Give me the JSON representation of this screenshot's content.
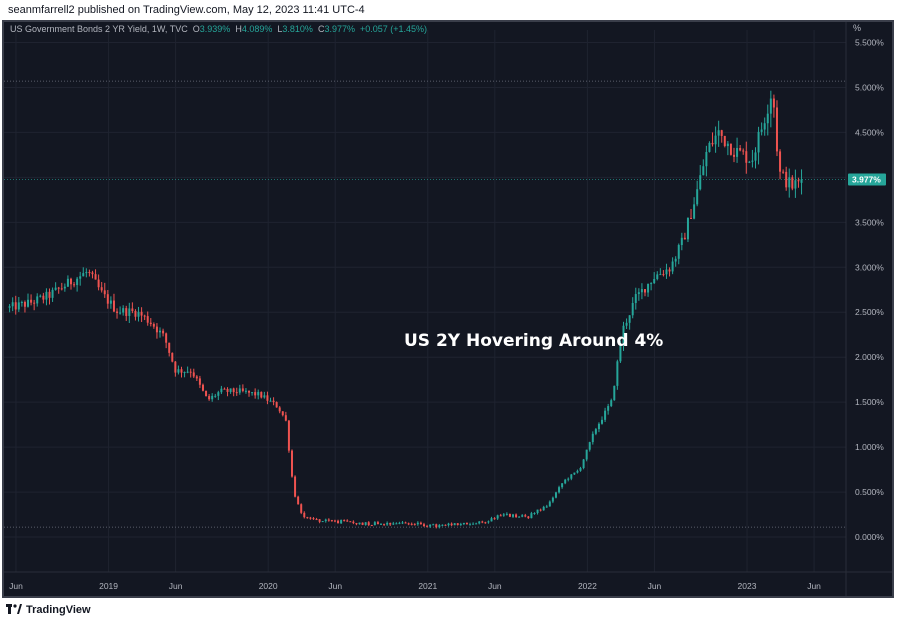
{
  "header": {
    "published_text": "seanmfarrell2 published on TradingView.com, May 12, 2023 11:41 UTC-4"
  },
  "legend": {
    "symbol": "US Government Bonds 2 YR Yield, 1W, TVC",
    "open_label": "O",
    "open_value": "3.939%",
    "high_label": "H",
    "high_value": "4.089%",
    "low_label": "L",
    "low_value": "3.810%",
    "close_label": "C",
    "close_value": "3.977%",
    "change": "+0.057 (+1.45%)"
  },
  "axis": {
    "unit_label": "%",
    "current_price_label": "3.977%"
  },
  "annotation": "US 2Y Hovering Around 4%",
  "footer": {
    "brand": "TradingView"
  },
  "colors": {
    "background": "#131722",
    "up": "#26a69a",
    "down": "#ef5350",
    "grid": "#1f2330",
    "axis_text": "#b2b5be",
    "price_badge": "#26a69a"
  },
  "chart_data": {
    "type": "candlestick",
    "ylim": [
      -0.4,
      5.55
    ],
    "y_ticks": [
      "0.000%",
      "0.500%",
      "1.000%",
      "1.500%",
      "2.000%",
      "2.500%",
      "3.000%",
      "3.500%",
      "4.000%",
      "4.500%",
      "5.000%",
      "5.500%"
    ],
    "y_tick_values": [
      0,
      0.5,
      1.0,
      1.5,
      2.0,
      2.5,
      3.0,
      3.5,
      4.0,
      4.5,
      5.0,
      5.5
    ],
    "x_ticks": [
      {
        "label": "Jun",
        "date": 2018.42
      },
      {
        "label": "2019",
        "date": 2019.0
      },
      {
        "label": "Jun",
        "date": 2019.42
      },
      {
        "label": "2020",
        "date": 2020.0
      },
      {
        "label": "Jun",
        "date": 2020.42
      },
      {
        "label": "2021",
        "date": 2021.0
      },
      {
        "label": "Jun",
        "date": 2021.42
      },
      {
        "label": "2022",
        "date": 2022.0
      },
      {
        "label": "Jun",
        "date": 2022.42
      },
      {
        "label": "2023",
        "date": 2023.0
      },
      {
        "label": "Jun",
        "date": 2023.42
      }
    ],
    "xlim": [
      2018.37,
      2023.57
    ],
    "reference_lines": [
      5.07,
      0.11
    ],
    "current_price": 3.977,
    "anchor_series": [
      {
        "t": 2018.38,
        "v": 2.55
      },
      {
        "t": 2018.5,
        "v": 2.6
      },
      {
        "t": 2018.62,
        "v": 2.68
      },
      {
        "t": 2018.8,
        "v": 2.88
      },
      {
        "t": 2018.87,
        "v": 2.95
      },
      {
        "t": 2018.96,
        "v": 2.7
      },
      {
        "t": 2019.05,
        "v": 2.52
      },
      {
        "t": 2019.18,
        "v": 2.5
      },
      {
        "t": 2019.27,
        "v": 2.38
      },
      {
        "t": 2019.35,
        "v": 2.22
      },
      {
        "t": 2019.42,
        "v": 1.85
      },
      {
        "t": 2019.52,
        "v": 1.85
      },
      {
        "t": 2019.62,
        "v": 1.52
      },
      {
        "t": 2019.7,
        "v": 1.62
      },
      {
        "t": 2019.82,
        "v": 1.62
      },
      {
        "t": 2019.95,
        "v": 1.58
      },
      {
        "t": 2020.06,
        "v": 1.45
      },
      {
        "t": 2020.11,
        "v": 1.3
      },
      {
        "t": 2020.16,
        "v": 0.5
      },
      {
        "t": 2020.21,
        "v": 0.25
      },
      {
        "t": 2020.3,
        "v": 0.19
      },
      {
        "t": 2020.6,
        "v": 0.15
      },
      {
        "t": 2020.85,
        "v": 0.16
      },
      {
        "t": 2021.05,
        "v": 0.12
      },
      {
        "t": 2021.35,
        "v": 0.16
      },
      {
        "t": 2021.45,
        "v": 0.25
      },
      {
        "t": 2021.62,
        "v": 0.22
      },
      {
        "t": 2021.75,
        "v": 0.35
      },
      {
        "t": 2021.85,
        "v": 0.62
      },
      {
        "t": 2021.95,
        "v": 0.75
      },
      {
        "t": 2022.05,
        "v": 1.2
      },
      {
        "t": 2022.15,
        "v": 1.5
      },
      {
        "t": 2022.22,
        "v": 2.3
      },
      {
        "t": 2022.3,
        "v": 2.65
      },
      {
        "t": 2022.42,
        "v": 2.9
      },
      {
        "t": 2022.52,
        "v": 3.0
      },
      {
        "t": 2022.6,
        "v": 3.3
      },
      {
        "t": 2022.68,
        "v": 3.8
      },
      {
        "t": 2022.75,
        "v": 4.3
      },
      {
        "t": 2022.82,
        "v": 4.5
      },
      {
        "t": 2022.92,
        "v": 4.3
      },
      {
        "t": 2023.03,
        "v": 4.2
      },
      {
        "t": 2023.1,
        "v": 4.6
      },
      {
        "t": 2023.16,
        "v": 5.0
      },
      {
        "t": 2023.2,
        "v": 4.05
      },
      {
        "t": 2023.28,
        "v": 3.9
      },
      {
        "t": 2023.36,
        "v": 3.98
      }
    ]
  }
}
